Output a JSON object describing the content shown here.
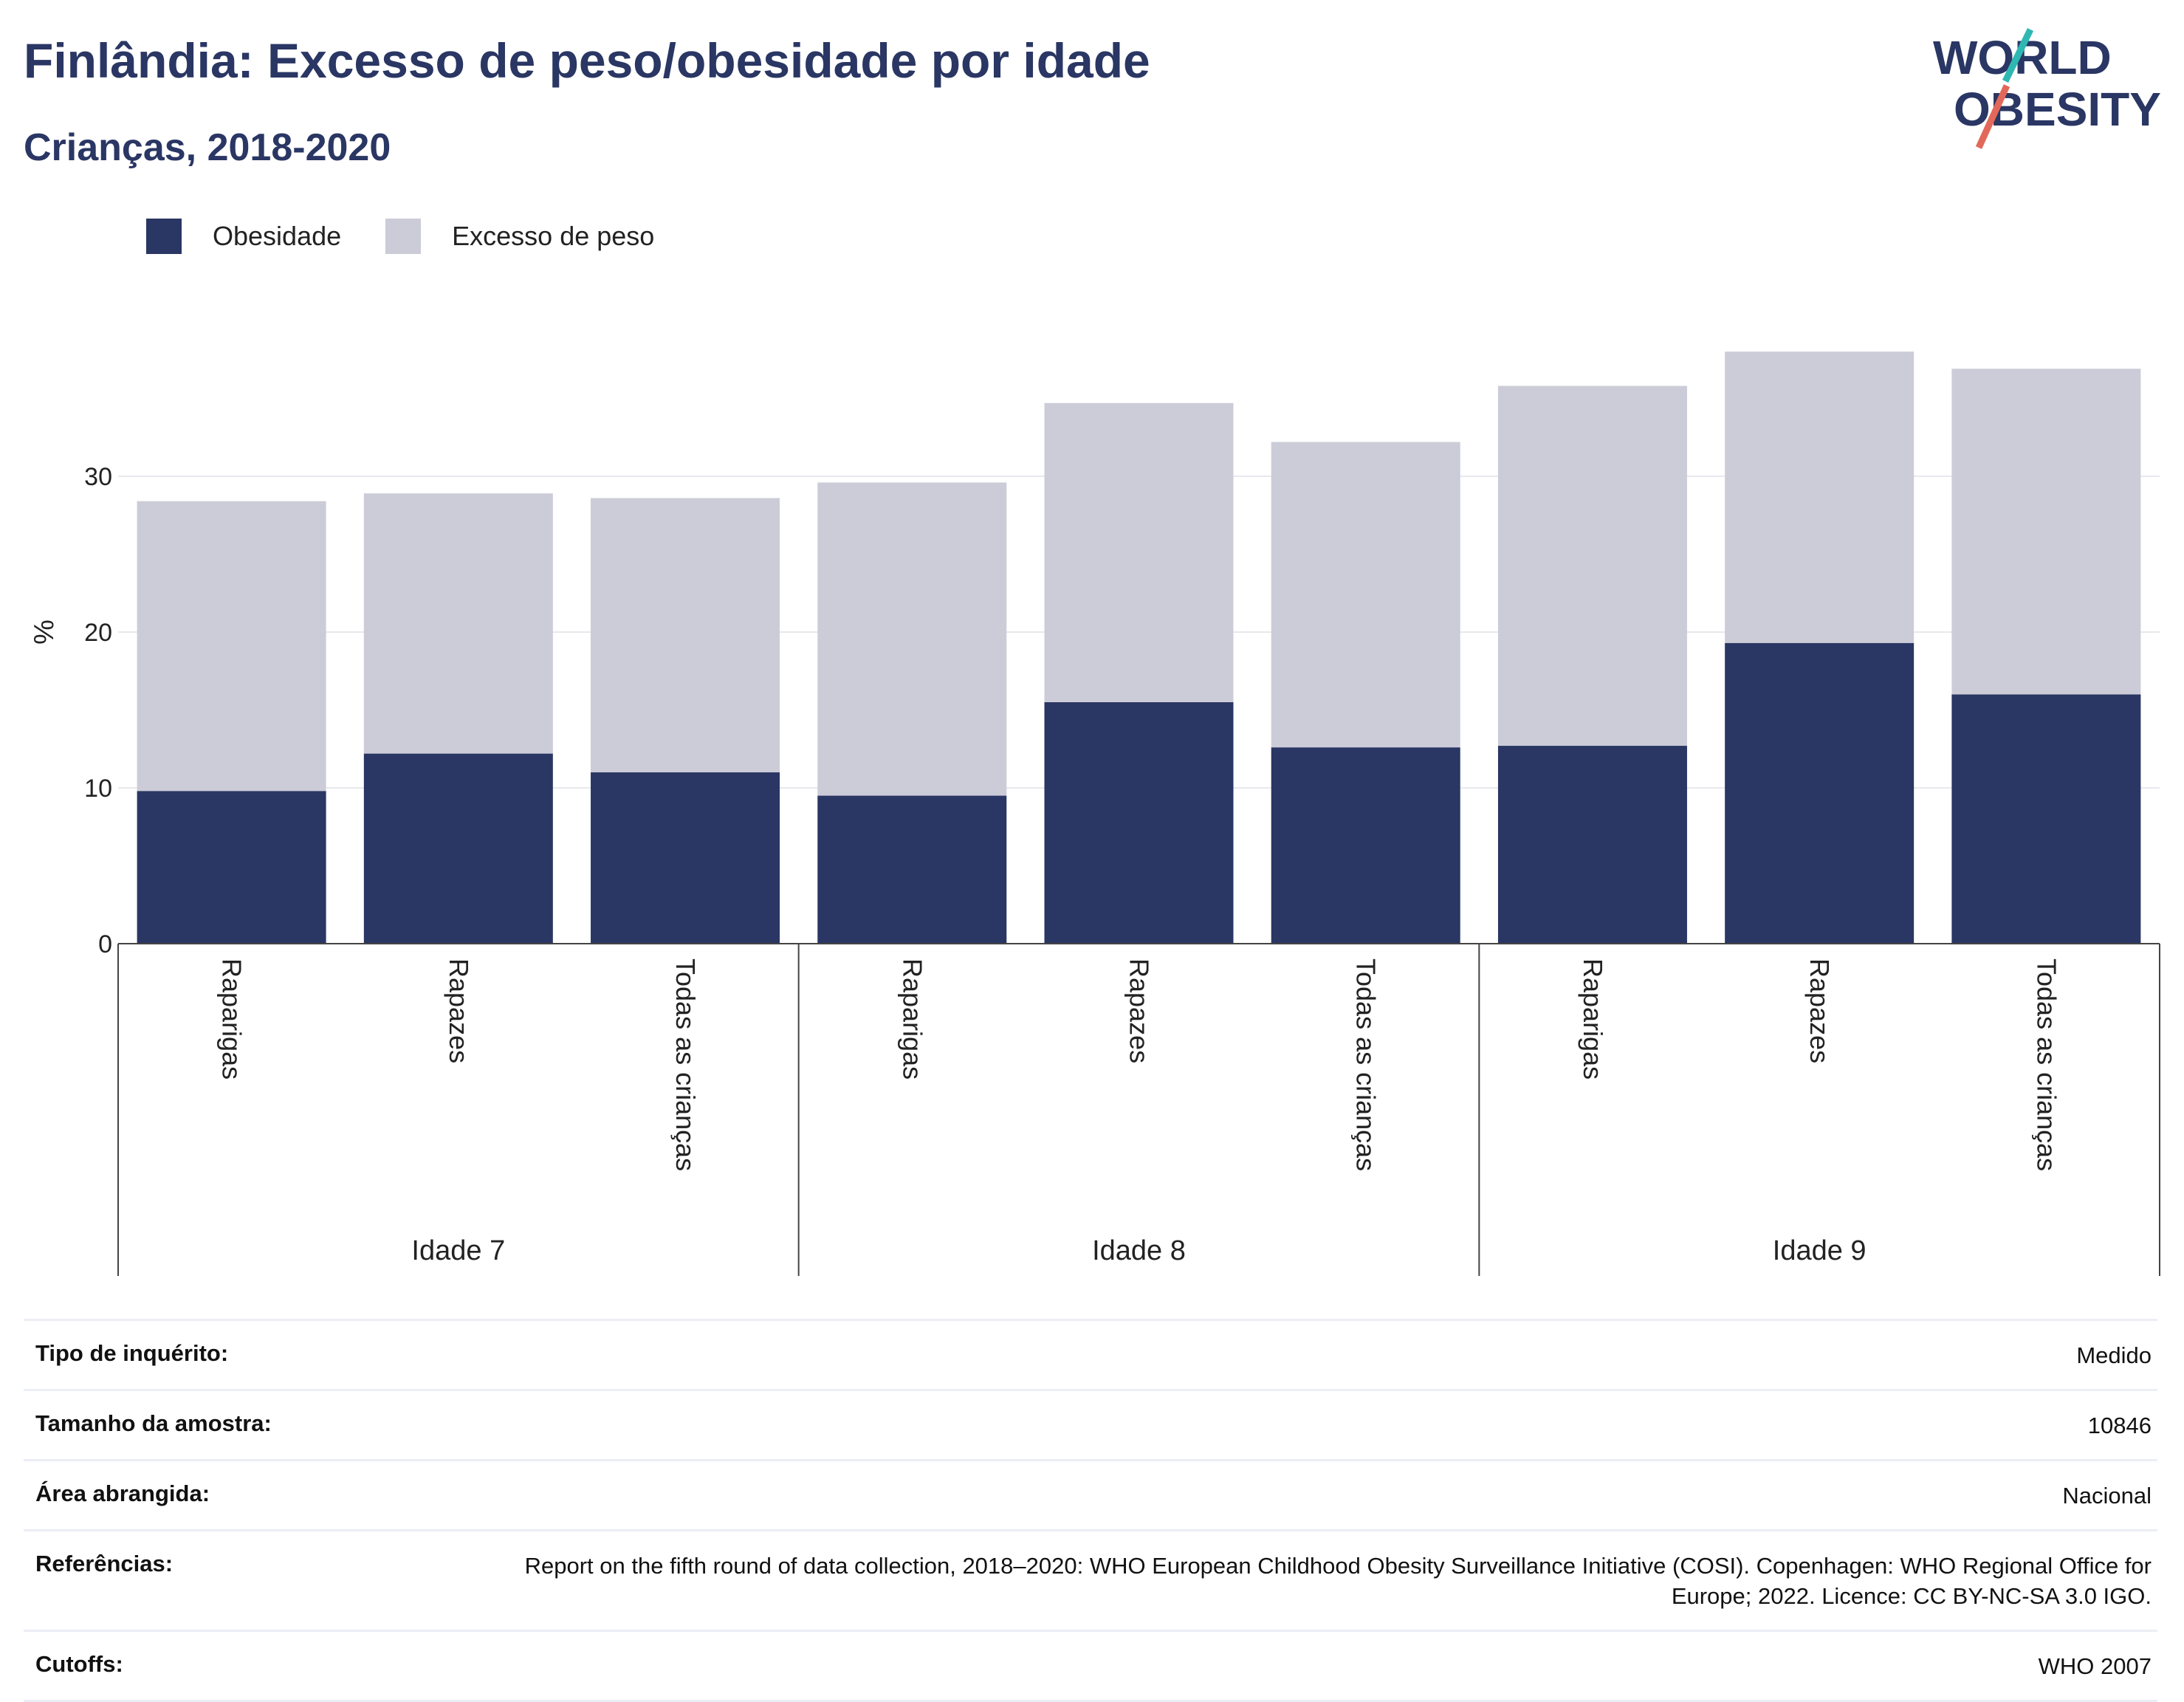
{
  "title": "Finlândia: Excesso de peso/obesidade por idade",
  "subtitle": "Crianças, 2018-2020",
  "logo": {
    "line1": "WORLD",
    "line2": "OBESITY"
  },
  "legend": {
    "obesity": "Obesidade",
    "overweight": "Excesso de peso"
  },
  "colors": {
    "obesity": "#2a3663",
    "overweight": "#cbccd8",
    "title": "#2a3663",
    "logo_teal": "#2fb8b3",
    "logo_coral": "#e2685a"
  },
  "chart_data": {
    "type": "bar",
    "stacked": true,
    "ylabel": "%",
    "ylim": [
      0,
      40
    ],
    "yticks": [
      0,
      10,
      20,
      30
    ],
    "grid": true,
    "legend_position": "top-left",
    "groups": [
      {
        "label": "Idade 7",
        "categories": [
          "Raparigas",
          "Rapazes",
          "Todas as crianças"
        ]
      },
      {
        "label": "Idade 8",
        "categories": [
          "Raparigas",
          "Rapazes",
          "Todas as crianças"
        ]
      },
      {
        "label": "Idade 9",
        "categories": [
          "Raparigas",
          "Rapazes",
          "Todas as crianças"
        ]
      }
    ],
    "series": [
      {
        "name": "Obesidade",
        "values": [
          9.8,
          12.2,
          11.0,
          9.5,
          15.5,
          12.6,
          12.7,
          19.3,
          16.0
        ]
      },
      {
        "name": "Excesso de peso",
        "values": [
          18.6,
          16.7,
          17.6,
          20.1,
          19.2,
          19.6,
          23.1,
          18.7,
          20.9
        ]
      }
    ]
  },
  "meta": [
    {
      "key": "Tipo de inquérito:",
      "value": "Medido"
    },
    {
      "key": "Tamanho da amostra:",
      "value": "10846"
    },
    {
      "key": "Área abrangida:",
      "value": "Nacional"
    },
    {
      "key": "Referências:",
      "value": "Report on the fifth round of data collection, 2018–2020: WHO European Childhood Obesity Surveillance Initiative (COSI). Copenhagen: WHO Regional Office for Europe; 2022. Licence: CC BY-NC-SA 3.0 IGO."
    },
    {
      "key": "Cutoffs:",
      "value": "WHO 2007"
    }
  ]
}
